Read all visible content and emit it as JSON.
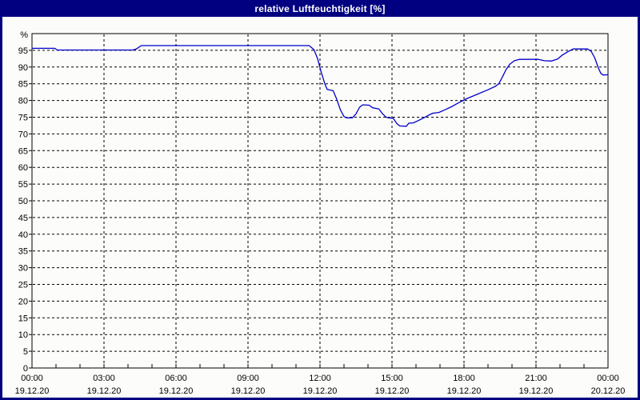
{
  "window": {
    "title": "relative Luftfeuchtigkeit [%]"
  },
  "colors": {
    "frame_border": "#000080",
    "titlebar_bg": "#000080",
    "titlebar_text": "#ffffff",
    "plot_background": "#fcfcfa",
    "plot_border": "#000000",
    "gridline": "#000000",
    "series_line": "#0000cc",
    "tick_label": "#000000"
  },
  "chart_data": {
    "type": "line",
    "title": "relative Luftfeuchtigkeit [%]",
    "grid": "dashed",
    "legend": "none",
    "y_axis": {
      "unit_label": "%",
      "range": [
        0,
        100
      ],
      "tick_interval": 5,
      "tick_labels": [
        "0",
        "5",
        "10",
        "15",
        "20",
        "25",
        "30",
        "35",
        "40",
        "45",
        "50",
        "55",
        "60",
        "65",
        "70",
        "75",
        "80",
        "85",
        "90",
        "95"
      ]
    },
    "x_axis": {
      "range_hours": [
        0,
        24
      ],
      "minor_tick_interval_hours": 1,
      "major_gridline_interval_hours": 3,
      "ticks": [
        {
          "hour": 0,
          "time": "00:00",
          "date": "19.12.20"
        },
        {
          "hour": 3,
          "time": "03:00",
          "date": "19.12.20"
        },
        {
          "hour": 6,
          "time": "06:00",
          "date": "19.12.20"
        },
        {
          "hour": 9,
          "time": "09:00",
          "date": "19.12.20"
        },
        {
          "hour": 12,
          "time": "12:00",
          "date": "19.12.20"
        },
        {
          "hour": 15,
          "time": "15:00",
          "date": "19.12.20"
        },
        {
          "hour": 18,
          "time": "18:00",
          "date": "19.12.20"
        },
        {
          "hour": 21,
          "time": "21:00",
          "date": "19.12.20"
        },
        {
          "hour": 24,
          "time": "00:00",
          "date": "20.12.20"
        }
      ]
    },
    "series": [
      {
        "color": "#0000cc",
        "points": [
          [
            0,
            95.6
          ],
          [
            0.95,
            95.6
          ],
          [
            1.05,
            95.1
          ],
          [
            4.2,
            95.1
          ],
          [
            4.35,
            95.4
          ],
          [
            4.55,
            96.4
          ],
          [
            11.55,
            96.4
          ],
          [
            11.75,
            95.2
          ],
          [
            11.9,
            92.5
          ],
          [
            12.05,
            88.5
          ],
          [
            12.2,
            85.0
          ],
          [
            12.3,
            83.3
          ],
          [
            12.55,
            82.9
          ],
          [
            12.7,
            80.3
          ],
          [
            12.85,
            77.2
          ],
          [
            13.0,
            75.2
          ],
          [
            13.1,
            74.8
          ],
          [
            13.35,
            74.8
          ],
          [
            13.5,
            76.0
          ],
          [
            13.65,
            78.0
          ],
          [
            13.78,
            78.7
          ],
          [
            14.05,
            78.6
          ],
          [
            14.2,
            77.8
          ],
          [
            14.45,
            77.5
          ],
          [
            14.6,
            76.1
          ],
          [
            14.75,
            75.0
          ],
          [
            14.85,
            74.8
          ],
          [
            15.05,
            74.7
          ],
          [
            15.2,
            73.1
          ],
          [
            15.32,
            72.4
          ],
          [
            15.6,
            72.3
          ],
          [
            15.7,
            73.2
          ],
          [
            15.88,
            73.3
          ],
          [
            16.1,
            74.0
          ],
          [
            16.35,
            74.9
          ],
          [
            16.55,
            75.7
          ],
          [
            16.7,
            76.2
          ],
          [
            16.95,
            76.4
          ],
          [
            17.2,
            77.2
          ],
          [
            17.5,
            78.2
          ],
          [
            17.8,
            79.4
          ],
          [
            18.1,
            80.5
          ],
          [
            18.5,
            81.7
          ],
          [
            19.0,
            83.2
          ],
          [
            19.3,
            84.2
          ],
          [
            19.45,
            85.0
          ],
          [
            19.6,
            87.0
          ],
          [
            19.75,
            89.2
          ],
          [
            19.9,
            90.8
          ],
          [
            20.1,
            91.9
          ],
          [
            20.3,
            92.3
          ],
          [
            21.1,
            92.3
          ],
          [
            21.35,
            91.9
          ],
          [
            21.65,
            91.8
          ],
          [
            21.9,
            92.4
          ],
          [
            22.1,
            93.6
          ],
          [
            22.35,
            94.7
          ],
          [
            22.55,
            95.4
          ],
          [
            23.15,
            95.4
          ],
          [
            23.3,
            94.7
          ],
          [
            23.45,
            92.7
          ],
          [
            23.6,
            89.7
          ],
          [
            23.7,
            88.1
          ],
          [
            23.8,
            87.6
          ],
          [
            24,
            87.7
          ]
        ]
      }
    ]
  }
}
